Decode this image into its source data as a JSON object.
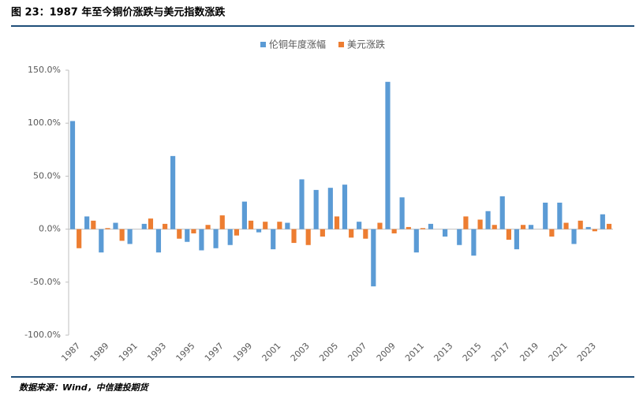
{
  "chart_data": {
    "type": "bar",
    "title": "图 23：1987 年至今铜价涨跌与美元指数涨跌",
    "source": "数据来源：Wind，中信建投期货",
    "categories": [
      "1987",
      null,
      "1989",
      null,
      "1991",
      null,
      "1993",
      null,
      "1995",
      null,
      "1997",
      null,
      "1999",
      null,
      "2001",
      null,
      "2003",
      null,
      "2005",
      null,
      "2007",
      null,
      "2009",
      null,
      "2011",
      null,
      "2013",
      null,
      "2015",
      null,
      "2017",
      null,
      "2019",
      null,
      "2021",
      null,
      "2023",
      null
    ],
    "series": [
      {
        "name": "伦铜年度涨幅",
        "color": "#5b9bd5",
        "values": [
          102,
          12,
          -22,
          6,
          -14,
          5,
          -22,
          69,
          -12,
          -20,
          -18,
          -15,
          26,
          -3,
          -19,
          6,
          47,
          37,
          39,
          42,
          7,
          -54,
          139,
          30,
          -22,
          5,
          -7,
          -15,
          -25,
          17,
          31,
          -19,
          4,
          25,
          25,
          -14,
          2,
          14
        ]
      },
      {
        "name": "美元涨跌",
        "color": "#ed7d31",
        "values": [
          -18,
          8,
          1,
          -11,
          0,
          10,
          5,
          -9,
          -4,
          4,
          13,
          -6,
          8,
          7,
          7,
          -13,
          -15,
          -7,
          12,
          -8,
          -9,
          6,
          -4,
          2,
          1,
          0,
          0,
          12,
          9,
          4,
          -10,
          4,
          0,
          -7,
          6,
          8,
          -2,
          5
        ]
      }
    ],
    "ylim": [
      -100,
      150
    ],
    "yticks": [
      {
        "value": -100,
        "label": "-100.0%"
      },
      {
        "value": -50,
        "label": "-50.0%"
      },
      {
        "value": 0,
        "label": "0.0%"
      },
      {
        "value": 50,
        "label": "50.0%"
      },
      {
        "value": 100,
        "label": "100.0%"
      },
      {
        "value": 150,
        "label": "150.0%"
      }
    ],
    "legend": "top"
  }
}
